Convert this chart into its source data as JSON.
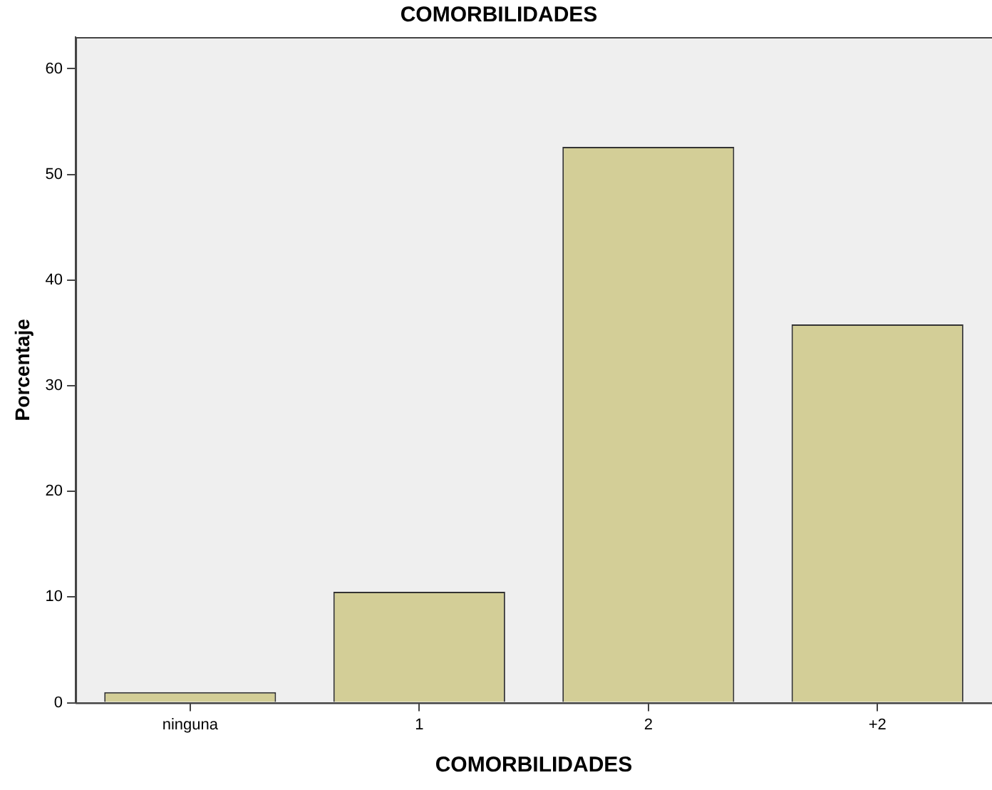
{
  "chart_data": {
    "type": "bar",
    "title": "COMORBILIDADES",
    "xlabel": "COMORBILIDADES",
    "ylabel": "Porcentaje",
    "categories": [
      "ninguna",
      "1",
      "2",
      "+2"
    ],
    "values": [
      1.0,
      10.5,
      52.6,
      35.8
    ],
    "color": "#d3ce97",
    "ylim": [
      0,
      63
    ],
    "yticks": [
      0,
      10,
      20,
      30,
      40,
      50,
      60
    ],
    "grid": false,
    "legend": false
  }
}
